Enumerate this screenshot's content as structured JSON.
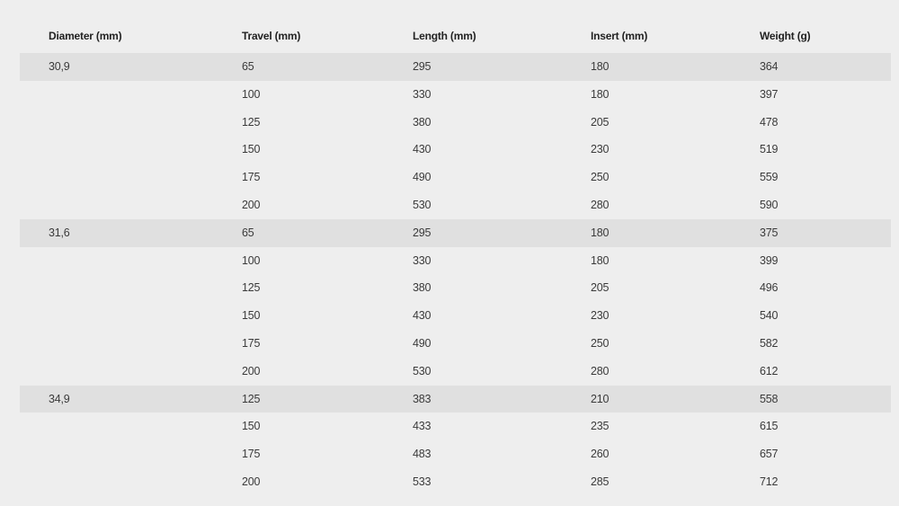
{
  "table": {
    "headers": [
      "Diameter (mm)",
      "Travel (mm)",
      "Length (mm)",
      "Insert (mm)",
      "Weight (g)"
    ],
    "groups": [
      {
        "diameter": "30,9",
        "rows": [
          [
            "65",
            "295",
            "180",
            "364"
          ],
          [
            "100",
            "330",
            "180",
            "397"
          ],
          [
            "125",
            "380",
            "205",
            "478"
          ],
          [
            "150",
            "430",
            "230",
            "519"
          ],
          [
            "175",
            "490",
            "250",
            "559"
          ],
          [
            "200",
            "530",
            "280",
            "590"
          ]
        ]
      },
      {
        "diameter": "31,6",
        "rows": [
          [
            "65",
            "295",
            "180",
            "375"
          ],
          [
            "100",
            "330",
            "180",
            "399"
          ],
          [
            "125",
            "380",
            "205",
            "496"
          ],
          [
            "150",
            "430",
            "230",
            "540"
          ],
          [
            "175",
            "490",
            "250",
            "582"
          ],
          [
            "200",
            "530",
            "280",
            "612"
          ]
        ]
      },
      {
        "diameter": "34,9",
        "rows": [
          [
            "125",
            "383",
            "210",
            "558"
          ],
          [
            "150",
            "433",
            "235",
            "615"
          ],
          [
            "175",
            "483",
            "260",
            "657"
          ],
          [
            "200",
            "533",
            "285",
            "712"
          ]
        ]
      }
    ]
  },
  "colors": {
    "background": "#eeeeee",
    "group_row": "#e0e0e0"
  }
}
